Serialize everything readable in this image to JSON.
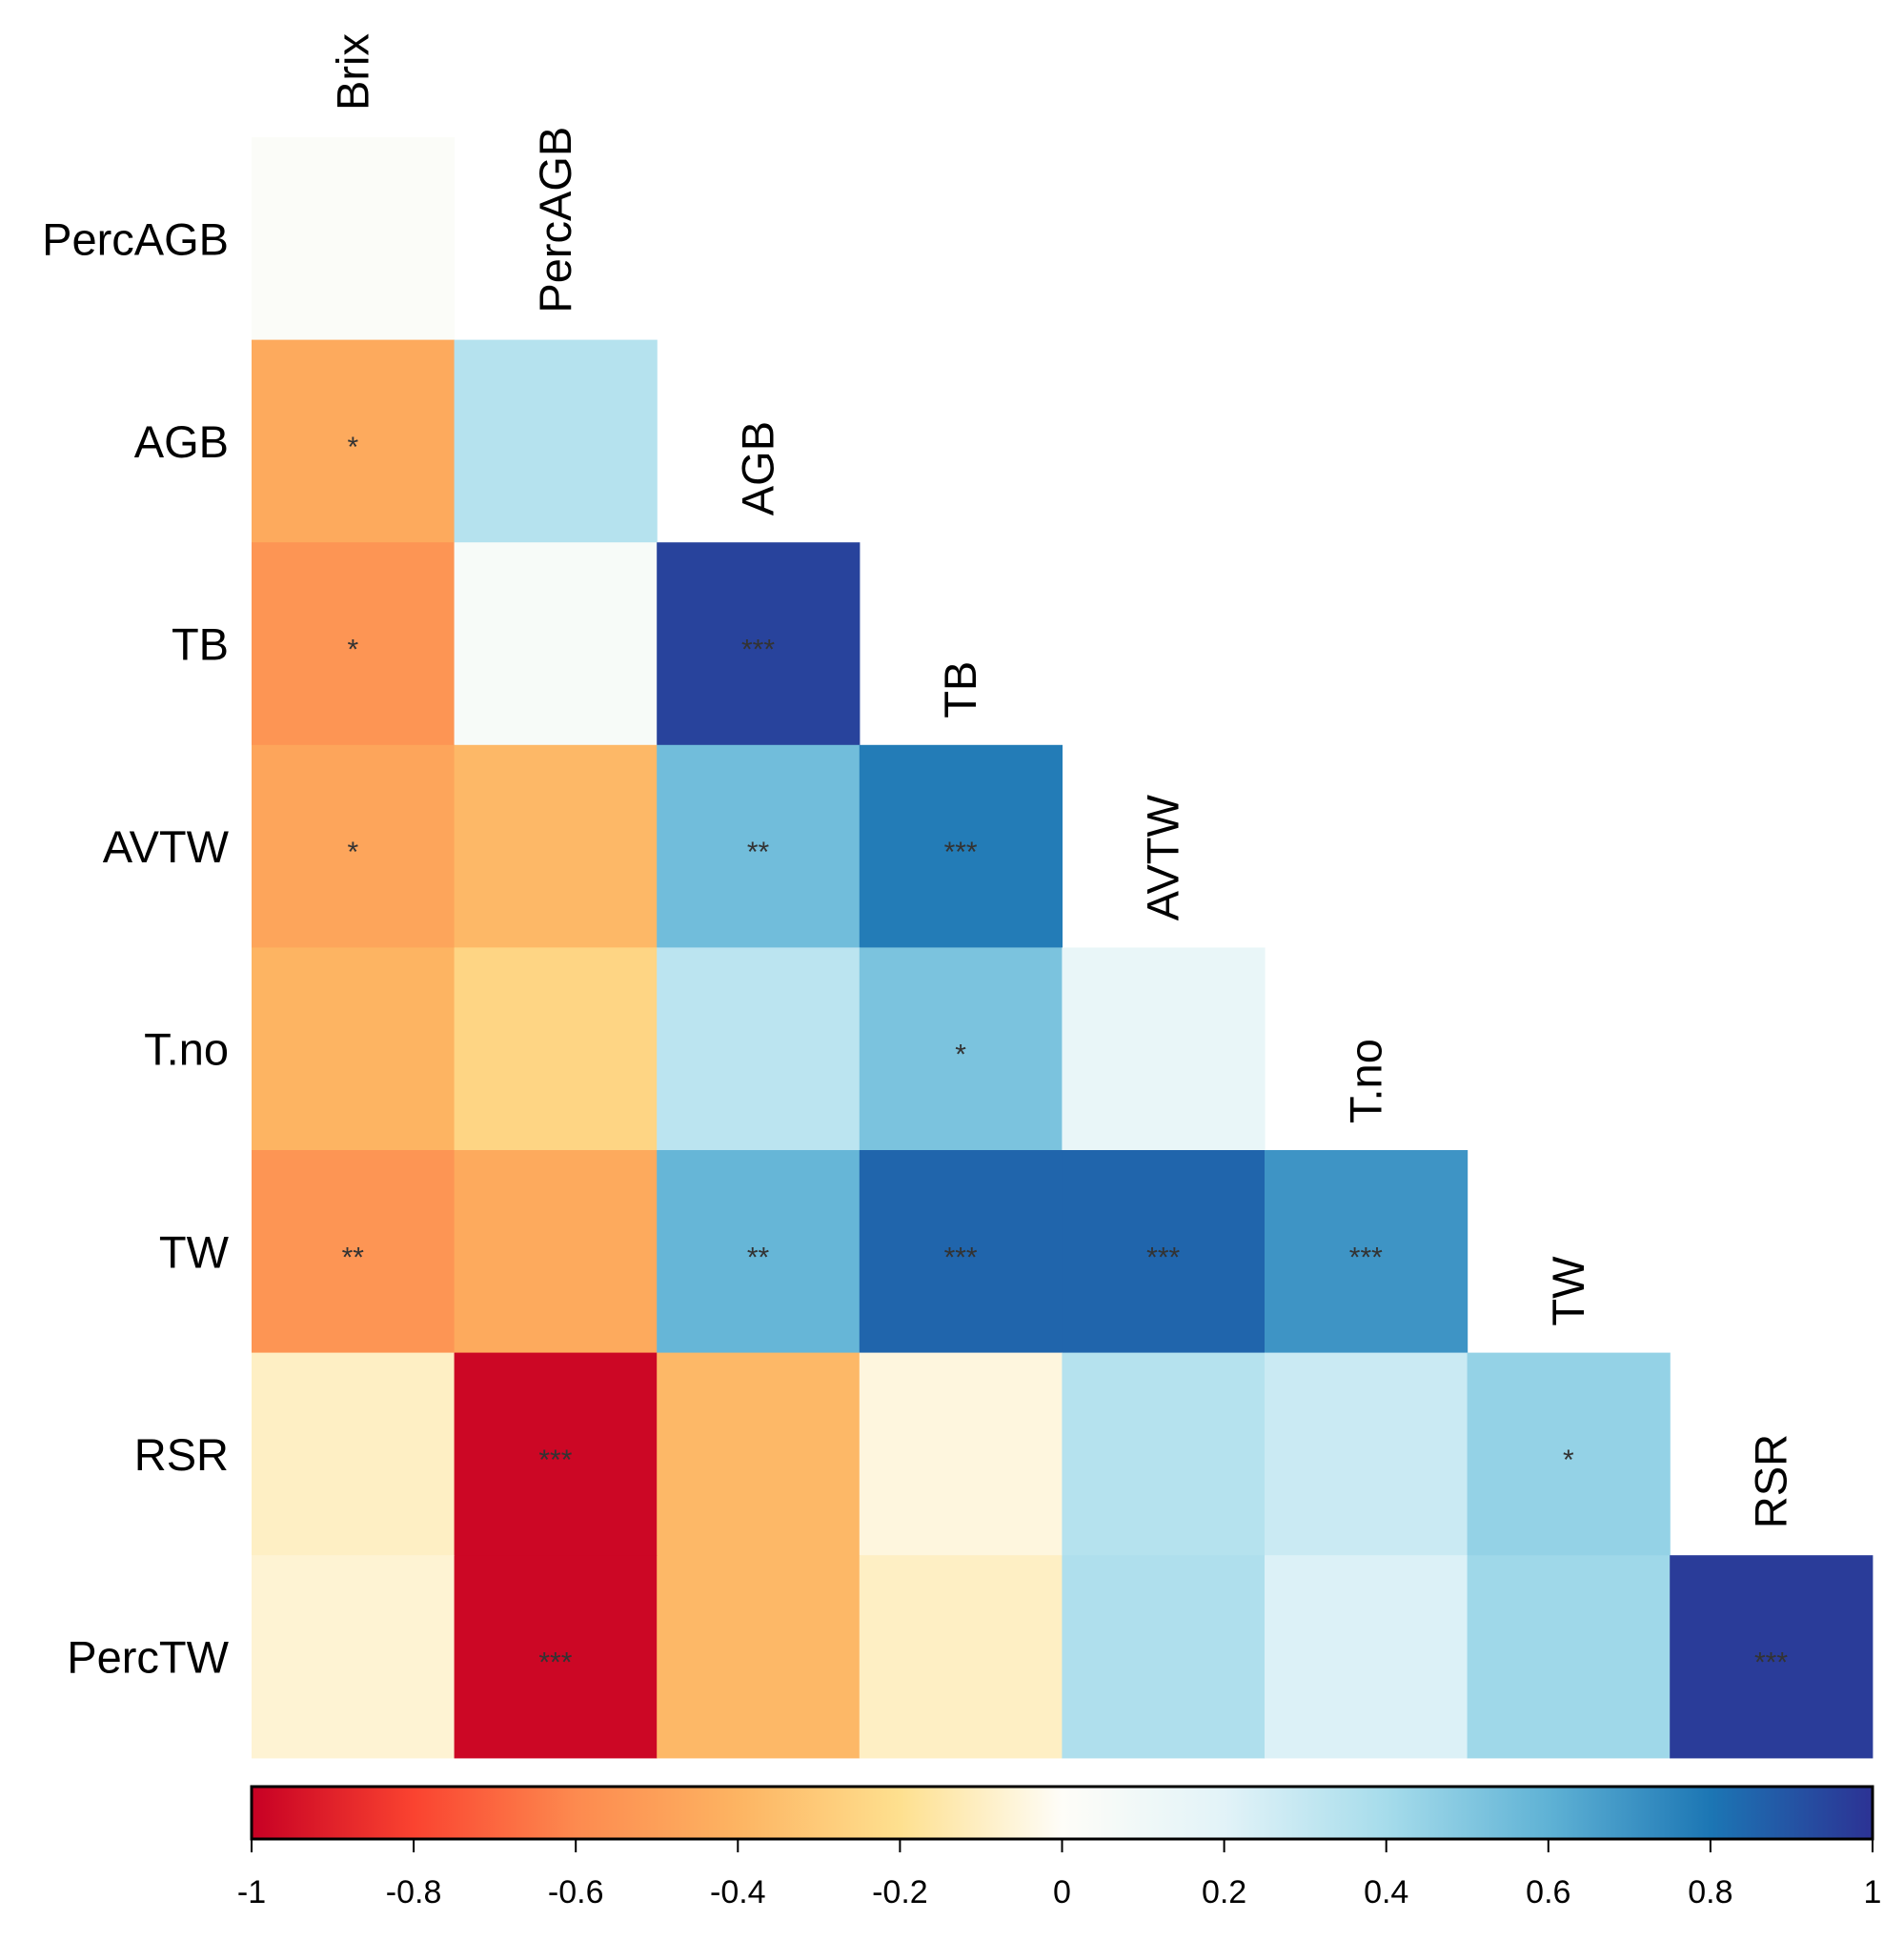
{
  "chart_data": {
    "type": "heatmap",
    "title": "",
    "variables": [
      "Brix",
      "PercAGB",
      "AGB",
      "TB",
      "AVTW",
      "T.no",
      "TW",
      "RSR",
      "PercTW"
    ],
    "row_labels": [
      "PercAGB",
      "AGB",
      "TB",
      "AVTW",
      "T.no",
      "TW",
      "RSR",
      "PercTW"
    ],
    "col_labels": [
      "Brix",
      "PercAGB",
      "AGB",
      "TB",
      "AVTW",
      "T.no",
      "TW",
      "RSR"
    ],
    "layout": "lower-triangle",
    "values": [
      [
        0.02
      ],
      [
        -0.45,
        0.35
      ],
      [
        -0.55,
        0.05,
        0.95
      ],
      [
        -0.47,
        -0.38,
        0.55,
        0.78
      ],
      [
        -0.4,
        -0.25,
        0.33,
        0.52,
        0.15
      ],
      [
        -0.55,
        -0.45,
        0.58,
        0.85,
        0.85,
        0.7
      ],
      [
        -0.1,
        -0.98,
        -0.38,
        -0.05,
        0.35,
        0.28,
        0.45
      ],
      [
        -0.07,
        -0.98,
        -0.38,
        -0.1,
        0.37,
        0.22,
        0.42,
        0.97
      ]
    ],
    "significance": [
      [
        ""
      ],
      [
        "*",
        ""
      ],
      [
        "*",
        "",
        "***"
      ],
      [
        "*",
        "",
        "**",
        "***"
      ],
      [
        "",
        "",
        "",
        "*",
        ""
      ],
      [
        "**",
        "",
        "**",
        "***",
        "***",
        "***"
      ],
      [
        "",
        "***",
        "",
        "",
        "",
        "",
        "*"
      ],
      [
        "",
        "***",
        "",
        "",
        "",
        "",
        "",
        "***"
      ]
    ],
    "colorbar": {
      "range": [
        -1,
        1
      ],
      "ticks": [
        "-1",
        "-0.8",
        "-0.6",
        "-0.4",
        "-0.2",
        "0",
        "0.2",
        "0.4",
        "0.6",
        "0.8",
        "1"
      ],
      "tick_values": [
        -1,
        -0.8,
        -0.6,
        -0.4,
        -0.2,
        0,
        0.2,
        0.4,
        0.6,
        0.8,
        1
      ],
      "placement": "bottom"
    },
    "colors": {
      "stops": [
        [
          -1,
          "#c70024"
        ],
        [
          -0.8,
          "#fa4330"
        ],
        [
          -0.6,
          "#fd8a4f"
        ],
        [
          -0.4,
          "#fdb462"
        ],
        [
          -0.2,
          "#fee08f"
        ],
        [
          0,
          "#fefdf8"
        ],
        [
          0.2,
          "#e2f3f8"
        ],
        [
          0.4,
          "#a6dceb"
        ],
        [
          0.6,
          "#5fb2d5"
        ],
        [
          0.8,
          "#1c76b4"
        ],
        [
          1,
          "#2c3294"
        ]
      ]
    }
  }
}
